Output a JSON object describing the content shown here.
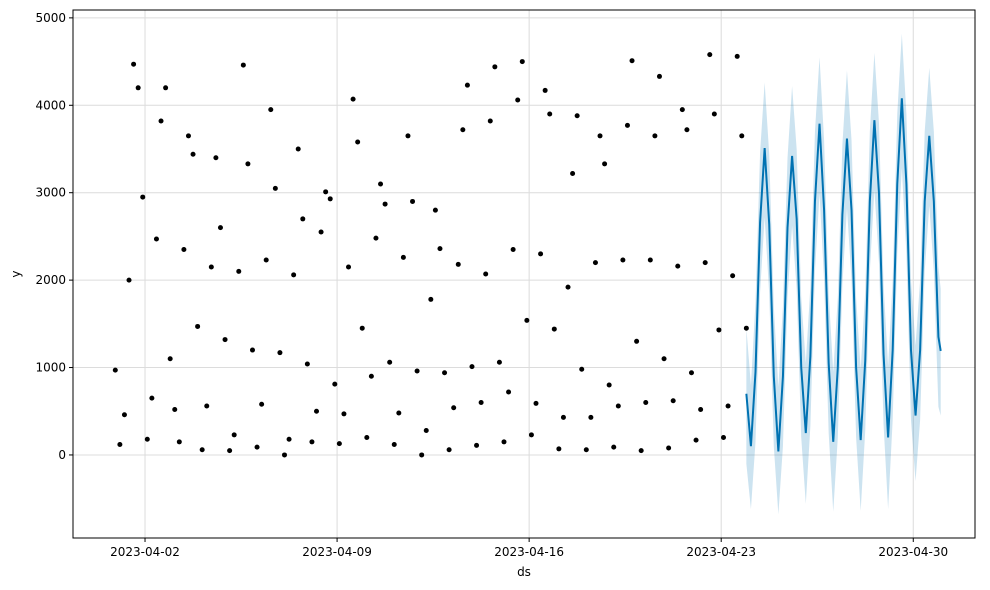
{
  "chart_data": {
    "type": "forecast",
    "x_label": "ds",
    "y_label": "y",
    "xlim": [
      "2023-03-30T09:00",
      "2023-05-02T06:00"
    ],
    "xticks": [
      "2023-04-02",
      "2023-04-09",
      "2023-04-16",
      "2023-04-23",
      "2023-04-30"
    ],
    "ylim": [
      -950,
      5090
    ],
    "yticks": [
      0,
      1000,
      2000,
      3000,
      4000,
      5000
    ],
    "grid": true,
    "observed": {
      "color": "#000000",
      "x": [
        "2023-03-31T22:00",
        "2023-04-01T02:00",
        "2023-04-01T06:00",
        "2023-04-01T10:00",
        "2023-04-01T14:00",
        "2023-04-01T18:00",
        "2023-04-01T22:00",
        "2023-04-02T02:00",
        "2023-04-02T06:00",
        "2023-04-02T10:00",
        "2023-04-02T14:00",
        "2023-04-02T18:00",
        "2023-04-02T22:00",
        "2023-04-03T02:00",
        "2023-04-03T06:00",
        "2023-04-03T10:00",
        "2023-04-03T14:00",
        "2023-04-03T18:00",
        "2023-04-03T22:00",
        "2023-04-04T02:00",
        "2023-04-04T06:00",
        "2023-04-04T10:00",
        "2023-04-04T14:00",
        "2023-04-04T18:00",
        "2023-04-04T22:00",
        "2023-04-05T02:00",
        "2023-04-05T06:00",
        "2023-04-05T10:00",
        "2023-04-05T14:00",
        "2023-04-05T18:00",
        "2023-04-05T22:00",
        "2023-04-06T02:00",
        "2023-04-06T06:00",
        "2023-04-06T10:00",
        "2023-04-06T14:00",
        "2023-04-06T18:00",
        "2023-04-06T22:00",
        "2023-04-07T02:00",
        "2023-04-07T06:00",
        "2023-04-07T10:00",
        "2023-04-07T14:00",
        "2023-04-07T18:00",
        "2023-04-07T22:00",
        "2023-04-08T02:00",
        "2023-04-08T06:00",
        "2023-04-08T10:00",
        "2023-04-08T14:00",
        "2023-04-08T18:00",
        "2023-04-08T22:00",
        "2023-04-09T02:00",
        "2023-04-09T06:00",
        "2023-04-09T10:00",
        "2023-04-09T14:00",
        "2023-04-09T18:00",
        "2023-04-09T22:00",
        "2023-04-10T02:00",
        "2023-04-10T06:00",
        "2023-04-10T10:00",
        "2023-04-10T14:00",
        "2023-04-10T18:00",
        "2023-04-10T22:00",
        "2023-04-11T02:00",
        "2023-04-11T06:00",
        "2023-04-11T10:00",
        "2023-04-11T14:00",
        "2023-04-11T18:00",
        "2023-04-11T22:00",
        "2023-04-12T02:00",
        "2023-04-12T06:00",
        "2023-04-12T10:00",
        "2023-04-12T14:00",
        "2023-04-12T18:00",
        "2023-04-12T22:00",
        "2023-04-13T02:00",
        "2023-04-13T06:00",
        "2023-04-13T10:00",
        "2023-04-13T14:00",
        "2023-04-13T18:00",
        "2023-04-13T22:00",
        "2023-04-14T02:00",
        "2023-04-14T06:00",
        "2023-04-14T10:00",
        "2023-04-14T14:00",
        "2023-04-14T18:00",
        "2023-04-14T22:00",
        "2023-04-15T02:00",
        "2023-04-15T06:00",
        "2023-04-15T10:00",
        "2023-04-15T14:00",
        "2023-04-15T18:00",
        "2023-04-15T22:00",
        "2023-04-16T02:00",
        "2023-04-16T06:00",
        "2023-04-16T10:00",
        "2023-04-16T14:00",
        "2023-04-16T18:00",
        "2023-04-16T22:00",
        "2023-04-17T02:00",
        "2023-04-17T06:00",
        "2023-04-17T10:00",
        "2023-04-17T14:00",
        "2023-04-17T18:00",
        "2023-04-17T22:00",
        "2023-04-18T02:00",
        "2023-04-18T06:00",
        "2023-04-18T10:00",
        "2023-04-18T14:00",
        "2023-04-18T18:00",
        "2023-04-18T22:00",
        "2023-04-19T02:00",
        "2023-04-19T06:00",
        "2023-04-19T10:00",
        "2023-04-19T14:00",
        "2023-04-19T18:00",
        "2023-04-19T22:00",
        "2023-04-20T02:00",
        "2023-04-20T06:00",
        "2023-04-20T10:00",
        "2023-04-20T14:00",
        "2023-04-20T18:00",
        "2023-04-20T22:00",
        "2023-04-21T02:00",
        "2023-04-21T06:00",
        "2023-04-21T10:00",
        "2023-04-21T14:00",
        "2023-04-21T18:00",
        "2023-04-21T22:00",
        "2023-04-22T02:00",
        "2023-04-22T06:00",
        "2023-04-22T10:00",
        "2023-04-22T14:00",
        "2023-04-22T18:00",
        "2023-04-22T22:00",
        "2023-04-23T02:00",
        "2023-04-23T06:00",
        "2023-04-23T10:00",
        "2023-04-23T14:00",
        "2023-04-23T18:00",
        "2023-04-23T22:00"
      ],
      "values": [
        970,
        120,
        460,
        2000,
        4470,
        4200,
        2950,
        180,
        650,
        2470,
        3820,
        4200,
        1100,
        520,
        150,
        2350,
        3650,
        3440,
        1470,
        60,
        560,
        2150,
        3400,
        2600,
        1320,
        50,
        230,
        2100,
        4460,
        3330,
        1200,
        90,
        580,
        2230,
        3950,
        3050,
        1170,
        0,
        180,
        2060,
        3500,
        2700,
        1040,
        150,
        500,
        2550,
        3010,
        2930,
        810,
        130,
        470,
        2150,
        4070,
        3580,
        1450,
        200,
        900,
        2480,
        3100,
        2870,
        1060,
        120,
        480,
        2260,
        3650,
        2900,
        960,
        0,
        280,
        1780,
        2800,
        2360,
        940,
        60,
        540,
        2180,
        3720,
        4230,
        1010,
        110,
        600,
        2070,
        3820,
        4440,
        1060,
        150,
        720,
        2350,
        4060,
        4500,
        1540,
        230,
        590,
        2300,
        4170,
        3900,
        1440,
        70,
        430,
        1920,
        3220,
        3880,
        980,
        60,
        430,
        2200,
        3650,
        3330,
        800,
        90,
        560,
        2230,
        3770,
        4510,
        1300,
        50,
        600,
        2230,
        3650,
        4330,
        1100,
        80,
        620,
        2160,
        3950,
        3720,
        940,
        170,
        520,
        2200,
        4580,
        3900,
        1430,
        200,
        560,
        2050,
        4560,
        3650,
        1450
      ]
    },
    "forecast": {
      "color": "#0072B2",
      "x": [
        "2023-04-23T22:00",
        "2023-04-24T02:00",
        "2023-04-24T06:00",
        "2023-04-24T10:00",
        "2023-04-24T14:00",
        "2023-04-24T18:00",
        "2023-04-24T22:00",
        "2023-04-25T02:00",
        "2023-04-25T06:00",
        "2023-04-25T10:00",
        "2023-04-25T14:00",
        "2023-04-25T18:00",
        "2023-04-25T22:00",
        "2023-04-26T02:00",
        "2023-04-26T06:00",
        "2023-04-26T10:00",
        "2023-04-26T14:00",
        "2023-04-26T18:00",
        "2023-04-26T22:00",
        "2023-04-27T02:00",
        "2023-04-27T06:00",
        "2023-04-27T10:00",
        "2023-04-27T14:00",
        "2023-04-27T18:00",
        "2023-04-27T22:00",
        "2023-04-28T02:00",
        "2023-04-28T06:00",
        "2023-04-28T10:00",
        "2023-04-28T14:00",
        "2023-04-28T18:00",
        "2023-04-28T22:00",
        "2023-04-29T02:00",
        "2023-04-29T06:00",
        "2023-04-29T10:00",
        "2023-04-29T14:00",
        "2023-04-29T18:00",
        "2023-04-29T22:00",
        "2023-04-30T02:00",
        "2023-04-30T06:00",
        "2023-04-30T10:00",
        "2023-04-30T14:00",
        "2023-04-30T18:00",
        "2023-04-30T22:00",
        "2023-05-01T00:00"
      ],
      "values": [
        700,
        100,
        950,
        2660,
        3510,
        2640,
        900,
        40,
        900,
        2600,
        3420,
        2700,
        1000,
        250,
        1130,
        2900,
        3790,
        2800,
        1050,
        150,
        1000,
        2750,
        3620,
        2800,
        1000,
        170,
        1080,
        2900,
        3830,
        3000,
        1150,
        200,
        1200,
        3100,
        4080,
        3100,
        1200,
        450,
        1200,
        2900,
        3650,
        2900,
        1350,
        1190
      ],
      "lower": [
        -100,
        -620,
        150,
        1860,
        2720,
        1840,
        100,
        -680,
        100,
        1800,
        2620,
        1900,
        200,
        -560,
        330,
        2100,
        2990,
        2000,
        250,
        -650,
        200,
        1950,
        2820,
        2000,
        200,
        -640,
        280,
        2100,
        3030,
        2200,
        350,
        -620,
        400,
        2300,
        3280,
        2300,
        400,
        -300,
        400,
        2100,
        2850,
        2100,
        550,
        450
      ],
      "upper": [
        1450,
        800,
        1750,
        3460,
        4260,
        3440,
        1700,
        780,
        1700,
        3400,
        4220,
        3500,
        1800,
        1050,
        1930,
        3700,
        4550,
        3600,
        1850,
        950,
        1800,
        3550,
        4400,
        3600,
        1800,
        980,
        1880,
        3700,
        4600,
        3800,
        1950,
        1020,
        2000,
        3900,
        4820,
        3900,
        2000,
        1250,
        2000,
        3700,
        4430,
        3700,
        2150,
        1900
      ]
    }
  }
}
